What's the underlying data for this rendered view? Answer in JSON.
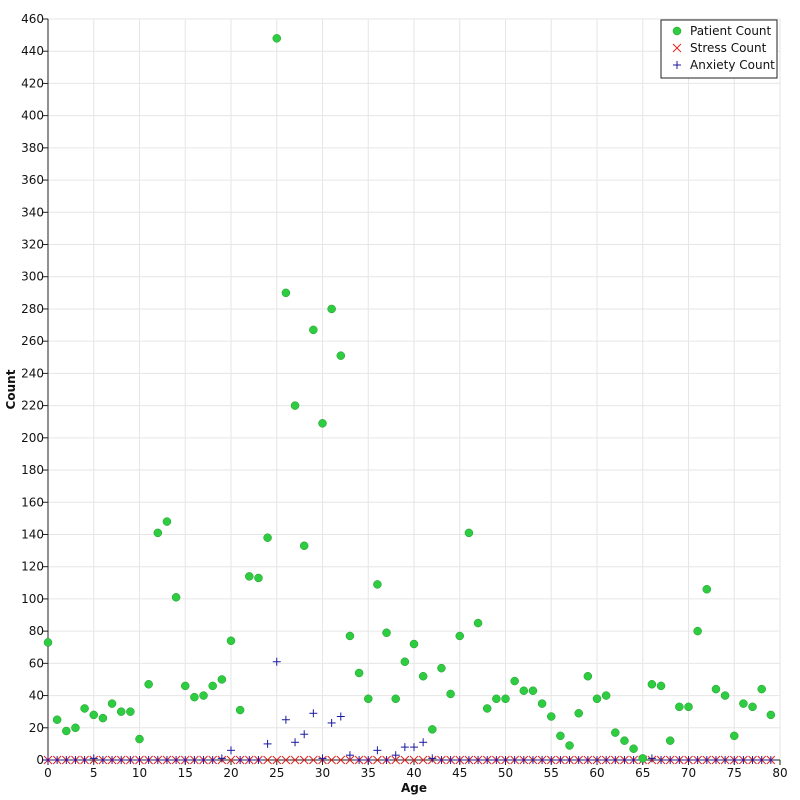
{
  "chart_data": {
    "type": "scatter",
    "title": "",
    "xlabel": "Age",
    "ylabel": "Count",
    "xlim": [
      0,
      80
    ],
    "ylim": [
      0,
      460
    ],
    "xticks": [
      0,
      5,
      10,
      15,
      20,
      25,
      30,
      35,
      40,
      45,
      50,
      55,
      60,
      65,
      70,
      75,
      80
    ],
    "yticks": [
      0,
      20,
      40,
      60,
      80,
      100,
      120,
      140,
      160,
      180,
      200,
      220,
      240,
      260,
      280,
      300,
      320,
      340,
      360,
      380,
      400,
      420,
      440,
      460
    ],
    "grid": true,
    "legend_position": "top-right",
    "series": [
      {
        "name": "Patient Count",
        "color": "#2ecc40",
        "marker": "circle",
        "x": [
          0,
          1,
          2,
          3,
          4,
          5,
          6,
          7,
          8,
          9,
          10,
          11,
          12,
          13,
          14,
          15,
          16,
          17,
          18,
          19,
          20,
          21,
          22,
          23,
          24,
          25,
          26,
          27,
          28,
          29,
          30,
          31,
          32,
          33,
          34,
          35,
          36,
          37,
          38,
          39,
          40,
          41,
          42,
          43,
          44,
          45,
          46,
          47,
          48,
          49,
          50,
          51,
          52,
          53,
          54,
          55,
          56,
          57,
          58,
          59,
          60,
          61,
          62,
          63,
          64,
          65,
          66,
          67,
          68,
          69,
          70,
          71,
          72,
          73,
          74,
          75,
          76,
          77,
          78,
          79
        ],
        "y": [
          73,
          25,
          18,
          20,
          32,
          28,
          26,
          35,
          30,
          30,
          13,
          47,
          141,
          148,
          101,
          46,
          39,
          40,
          46,
          50,
          74,
          31,
          114,
          113,
          138,
          448,
          290,
          220,
          133,
          267,
          209,
          280,
          251,
          77,
          54,
          38,
          109,
          79,
          38,
          61,
          72,
          52,
          19,
          57,
          41,
          77,
          141,
          85,
          32,
          38,
          38,
          49,
          43,
          43,
          35,
          27,
          15,
          9,
          29,
          52,
          38,
          40,
          17,
          12,
          7,
          1,
          47,
          46,
          12,
          33,
          33,
          80,
          106,
          44,
          40,
          15,
          35,
          33,
          44,
          28
        ]
      },
      {
        "name": "Stress Count",
        "color": "#e02020",
        "marker": "x",
        "x": [
          0,
          1,
          2,
          3,
          4,
          5,
          6,
          7,
          8,
          9,
          10,
          11,
          12,
          13,
          14,
          15,
          16,
          17,
          18,
          19,
          20,
          21,
          22,
          23,
          24,
          25,
          26,
          27,
          28,
          29,
          30,
          31,
          32,
          33,
          34,
          35,
          36,
          37,
          38,
          39,
          40,
          41,
          42,
          43,
          44,
          45,
          46,
          47,
          48,
          49,
          50,
          51,
          52,
          53,
          54,
          55,
          56,
          57,
          58,
          59,
          60,
          61,
          62,
          63,
          64,
          65,
          66,
          67,
          68,
          69,
          70,
          71,
          72,
          73,
          74,
          75,
          76,
          77,
          78,
          79
        ],
        "y": [
          0,
          0,
          0,
          0,
          0,
          0,
          0,
          0,
          0,
          0,
          0,
          0,
          0,
          0,
          0,
          0,
          0,
          0,
          0,
          0,
          0,
          0,
          0,
          0,
          0,
          0,
          0,
          0,
          0,
          0,
          0,
          0,
          0,
          0,
          0,
          0,
          0,
          0,
          0,
          0,
          0,
          0,
          0,
          0,
          0,
          0,
          0,
          0,
          0,
          0,
          0,
          0,
          0,
          0,
          0,
          0,
          0,
          0,
          0,
          0,
          0,
          0,
          0,
          0,
          0,
          0,
          0,
          0,
          0,
          0,
          0,
          0,
          0,
          0,
          0,
          0,
          0,
          0,
          0,
          0
        ]
      },
      {
        "name": "Anxiety Count",
        "color": "#1a1aa0",
        "marker": "plus",
        "x": [
          0,
          1,
          2,
          3,
          4,
          5,
          6,
          7,
          8,
          9,
          10,
          11,
          12,
          13,
          14,
          15,
          16,
          17,
          18,
          19,
          20,
          21,
          22,
          23,
          24,
          25,
          26,
          27,
          28,
          29,
          30,
          31,
          32,
          33,
          34,
          35,
          36,
          37,
          38,
          39,
          40,
          41,
          42,
          43,
          44,
          45,
          46,
          47,
          48,
          49,
          50,
          51,
          52,
          53,
          54,
          55,
          56,
          57,
          58,
          59,
          60,
          61,
          62,
          63,
          64,
          65,
          66,
          67,
          68,
          69,
          70,
          71,
          72,
          73,
          74,
          75,
          76,
          77,
          78,
          79
        ],
        "y": [
          0,
          0,
          0,
          0,
          0,
          1,
          0,
          0,
          0,
          0,
          0,
          0,
          0,
          0,
          0,
          0,
          0,
          0,
          0,
          1,
          6,
          0,
          0,
          0,
          10,
          61,
          25,
          11,
          16,
          29,
          1,
          23,
          27,
          3,
          0,
          0,
          6,
          0,
          3,
          8,
          8,
          11,
          1,
          0,
          0,
          0,
          0,
          0,
          0,
          0,
          0,
          0,
          0,
          0,
          0,
          0,
          0,
          0,
          0,
          0,
          0,
          0,
          0,
          0,
          0,
          0,
          1,
          0,
          0,
          0,
          0,
          0,
          0,
          0,
          0,
          0,
          0,
          0,
          0,
          0
        ]
      }
    ]
  }
}
